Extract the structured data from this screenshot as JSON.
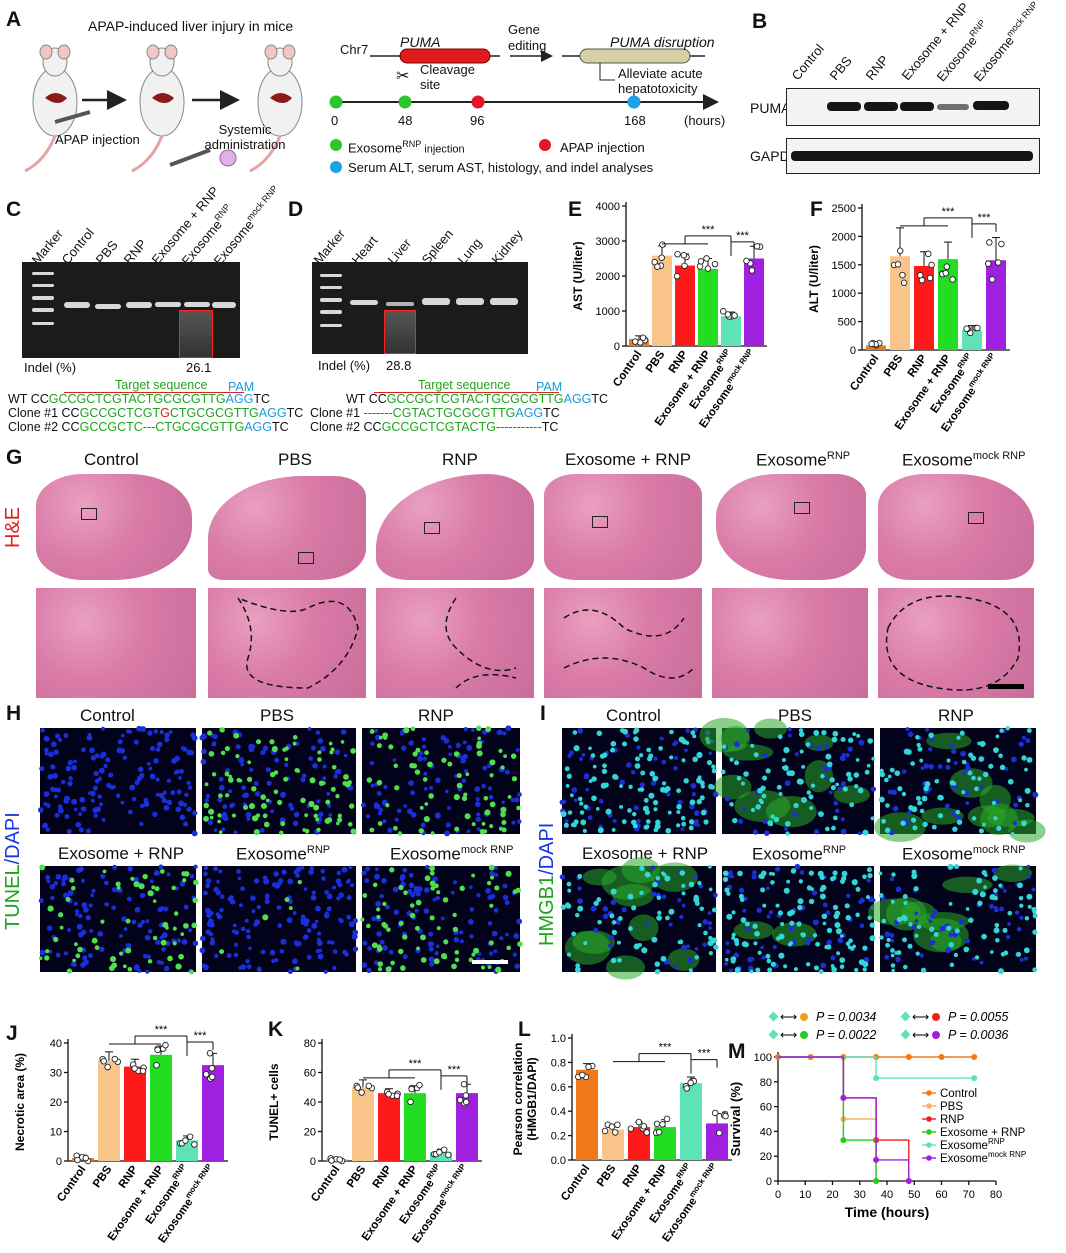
{
  "panels": {
    "A": "A",
    "B": "B",
    "C": "C",
    "D": "D",
    "E": "E",
    "F": "F",
    "G": "G",
    "H": "H",
    "I": "I",
    "J": "J",
    "K": "K",
    "L": "L",
    "M": "M"
  },
  "A": {
    "title": "APAP-induced liver injury in mice",
    "apap_injection": "APAP injection",
    "systemic": "Systemic\nadministration",
    "chr": "Chr7",
    "gene": "PUMA",
    "cleavage": "Cleavage\nsite",
    "gene_editing": "Gene\nediting",
    "disruption": "PUMA disruption",
    "alleviate": "Alleviate acute\nhepatotoxicity",
    "timepoints": [
      "0",
      "48",
      "96",
      "168"
    ],
    "time_unit": "(hours)",
    "legend_exo": "Exosome",
    "legend_exo_sup": "RNP",
    "legend_exo_tail": " injection",
    "legend_apap": "APAP injection",
    "legend_serum": "Serum ALT, serum AST, histology, and indel analyses",
    "colors": {
      "green": "#2ec42e",
      "red": "#e4142a",
      "blue": "#1aa3e8",
      "gene": "#e11b1b",
      "gene_disrupted": "#d8cfa6"
    }
  },
  "B": {
    "lanes": [
      "Control",
      "PBS",
      "RNP",
      "Exosome + RNP",
      "Exosome",
      "Exosome"
    ],
    "lane_sups": [
      "",
      "",
      "",
      "",
      "RNP",
      "mock RNP"
    ],
    "rows": [
      "PUMA",
      "GAPDH"
    ],
    "puma_intensity": [
      0,
      1,
      1,
      1,
      0.45,
      1
    ]
  },
  "C": {
    "lanes": [
      "Marker",
      "Control",
      "PBS",
      "RNP",
      "Exosome + RNP",
      "Exosome",
      "Exosome"
    ],
    "lane_sups": [
      "",
      "",
      "",
      "",
      "",
      "RNP",
      "mock RNP"
    ],
    "indel_label": "Indel (%)",
    "indel_value": "26.1",
    "wt": "WT",
    "clone1": "Clone #1",
    "clone2": "Clone #2",
    "target": "Target sequence",
    "pam": "PAM",
    "seq_wt": [
      "CC",
      "GCCGCTCGTACTGCGCGTTG",
      "AGG",
      "TC"
    ],
    "seq_c1": [
      "CC",
      "GCCGCTCGT",
      "G",
      "CTGCGCGTTG",
      "AGG",
      "TC"
    ],
    "seq_c2": [
      "CC",
      "GCCGCTC",
      "---",
      "CTGCGCGTTG",
      "AGG",
      "TC"
    ]
  },
  "D": {
    "lanes": [
      "Marker",
      "Heart",
      "Liver",
      "Spleen",
      "Lung",
      "Kidney"
    ],
    "indel_label": "Indel (%)",
    "indel_value": "28.8",
    "wt": "WT",
    "clone1": "Clone #1",
    "clone2": "Clone #2",
    "target": "Target sequence",
    "pam": "PAM",
    "seq_wt": [
      "CC",
      "GCCGCTCGTACTGCGCGTTG",
      "AGG",
      "TC"
    ],
    "seq_c1": [
      "-------",
      "CGTACTGCGCGTTG",
      "AGG",
      "TC"
    ],
    "seq_c2": [
      "CC",
      "GCCGCTCGTACTG",
      "-----------",
      "TC"
    ]
  },
  "groups": [
    "Control",
    "PBS",
    "RNP",
    "Exosome + RNP",
    "Exosome",
    "Exosome"
  ],
  "group_sups": [
    "",
    "",
    "",
    "",
    "RNP",
    "mock RNP"
  ],
  "group_colors": [
    "#f07a1a",
    "#f9c48a",
    "#ff1a1a",
    "#22dd22",
    "#5ee3b6",
    "#a020e0"
  ],
  "sig": "***",
  "chart_data": [
    {
      "id": "E",
      "type": "bar",
      "ylabel": "AST (U/liter)",
      "ylim": [
        0,
        4000
      ],
      "yticks": [
        0,
        1000,
        2000,
        3000,
        4000
      ],
      "values": [
        200,
        2580,
        2300,
        2200,
        850,
        2500
      ],
      "errors": [
        90,
        280,
        330,
        300,
        120,
        350
      ]
    },
    {
      "id": "F",
      "type": "bar",
      "ylabel": "ALT (U/liter)",
      "ylim": [
        0,
        2500
      ],
      "yticks": [
        0,
        500,
        1000,
        1500,
        2000,
        2500
      ],
      "values": [
        80,
        1650,
        1480,
        1600,
        350,
        1580
      ],
      "errors": [
        40,
        500,
        250,
        300,
        80,
        400
      ]
    },
    {
      "id": "J",
      "type": "bar",
      "ylabel": "Necrotic area (%)",
      "ylim": [
        0,
        40
      ],
      "yticks": [
        0,
        10,
        20,
        30,
        40
      ],
      "values": [
        1,
        34,
        32,
        36,
        7,
        32.5
      ],
      "errors": [
        1,
        3,
        2.5,
        3,
        1.5,
        4
      ]
    },
    {
      "id": "K",
      "type": "bar",
      "ylabel": "TUNEL+ cells",
      "ylim": [
        0,
        80
      ],
      "yticks": [
        0,
        20,
        40,
        60,
        80
      ],
      "values": [
        1,
        50,
        46,
        46,
        6,
        46
      ],
      "errors": [
        1,
        5,
        3,
        5,
        2,
        6
      ]
    },
    {
      "id": "L",
      "type": "bar",
      "ylabel": "Pearson correlation\n(HMGB1/DAPI)",
      "ylim": [
        0,
        1.0
      ],
      "yticks": [
        0.0,
        0.2,
        0.4,
        0.6,
        0.8,
        1.0
      ],
      "values": [
        0.74,
        0.25,
        0.27,
        0.27,
        0.63,
        0.3
      ],
      "errors": [
        0.05,
        0.04,
        0.04,
        0.06,
        0.05,
        0.08
      ]
    },
    {
      "id": "M",
      "type": "line",
      "title": "",
      "xlabel": "Time (hours)",
      "ylabel": "Survival (%)",
      "xlim": [
        0,
        80
      ],
      "ylim": [
        0,
        100
      ],
      "xticks": [
        0,
        10,
        20,
        30,
        40,
        50,
        60,
        70,
        80
      ],
      "yticks": [
        0,
        20,
        40,
        60,
        80,
        100
      ],
      "series": [
        {
          "name": "Control",
          "color": "#f07a1a",
          "steps": [
            [
              0,
              100
            ],
            [
              72,
              100
            ]
          ],
          "markers": [
            [
              0,
              100
            ],
            [
              12,
              100
            ],
            [
              24,
              100
            ],
            [
              36,
              100
            ],
            [
              48,
              100
            ],
            [
              60,
              100
            ],
            [
              72,
              100
            ]
          ]
        },
        {
          "name": "PBS",
          "color": "#f9b06a",
          "steps": [
            [
              0,
              100
            ],
            [
              24,
              100
            ],
            [
              24,
              50
            ],
            [
              36,
              50
            ],
            [
              36,
              0
            ]
          ],
          "markers": [
            [
              24,
              50
            ],
            [
              36,
              0
            ]
          ]
        },
        {
          "name": "RNP",
          "color": "#ee2020",
          "steps": [
            [
              0,
              100
            ],
            [
              24,
              100
            ],
            [
              24,
              67
            ],
            [
              36,
              67
            ],
            [
              36,
              33
            ],
            [
              48,
              33
            ],
            [
              48,
              0
            ]
          ],
          "markers": [
            [
              24,
              67
            ],
            [
              36,
              33
            ],
            [
              48,
              0
            ]
          ]
        },
        {
          "name": "Exosome + RNP",
          "color": "#22cc22",
          "steps": [
            [
              0,
              100
            ],
            [
              24,
              100
            ],
            [
              24,
              33
            ],
            [
              36,
              33
            ],
            [
              36,
              0
            ]
          ],
          "markers": [
            [
              24,
              33
            ],
            [
              36,
              0
            ]
          ]
        },
        {
          "name": "Exosome",
          "sup": "RNP",
          "color": "#5ee3b6",
          "steps": [
            [
              0,
              100
            ],
            [
              36,
              100
            ],
            [
              36,
              83
            ],
            [
              72,
              83
            ]
          ],
          "markers": [
            [
              36,
              83
            ],
            [
              72,
              83
            ]
          ]
        },
        {
          "name": "Exosome",
          "sup": "mock RNP",
          "color": "#a020e0",
          "steps": [
            [
              0,
              100
            ],
            [
              24,
              100
            ],
            [
              24,
              67
            ],
            [
              36,
              67
            ],
            [
              36,
              17
            ],
            [
              48,
              17
            ],
            [
              48,
              0
            ]
          ],
          "markers": [
            [
              24,
              67
            ],
            [
              36,
              17
            ],
            [
              48,
              0
            ]
          ]
        }
      ],
      "pvalues": [
        "P = 0.0034",
        "P = 0.0055",
        "P = 0.0022",
        "P = 0.0036"
      ]
    }
  ],
  "G": {
    "labels": [
      "Control",
      "PBS",
      "RNP",
      "Exosome + RNP",
      "Exosome",
      "Exosome"
    ],
    "sups": [
      "",
      "",
      "",
      "",
      "RNP",
      "mock RNP"
    ],
    "stain": "H&E"
  },
  "H": {
    "labels": [
      "Control",
      "PBS",
      "RNP",
      "Exosome + RNP",
      "Exosome",
      "Exosome"
    ],
    "sups": [
      "",
      "",
      "",
      "",
      "RNP",
      "mock RNP"
    ],
    "ylab1": "TUNEL",
    "ylab2": "/DAPI"
  },
  "I": {
    "labels": [
      "Control",
      "PBS",
      "RNP",
      "Exosome + RNP",
      "Exosome",
      "Exosome"
    ],
    "sups": [
      "",
      "",
      "",
      "",
      "RNP",
      "mock RNP"
    ],
    "ylab1": "HMGB1",
    "ylab2": "/DAPI"
  }
}
